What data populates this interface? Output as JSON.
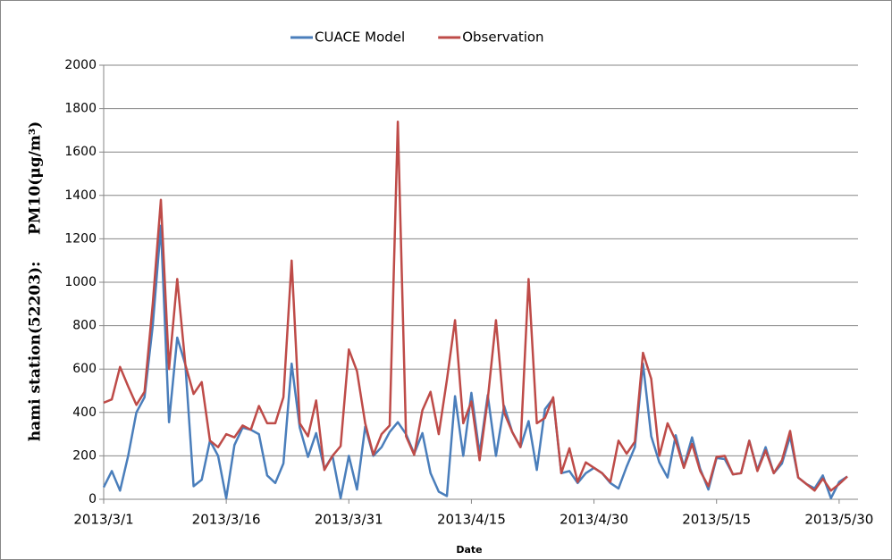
{
  "chart_data": {
    "type": "line",
    "y_label": "hami station(52203):     PM10(μg/m³)",
    "x_label": "Date",
    "categories": [
      "2013/3/1",
      null,
      null,
      null,
      null,
      null,
      null,
      null,
      null,
      null,
      null,
      null,
      null,
      null,
      null,
      "2013/3/16",
      null,
      null,
      null,
      null,
      null,
      null,
      null,
      null,
      null,
      null,
      null,
      null,
      null,
      null,
      "2013/3/31",
      null,
      null,
      null,
      null,
      null,
      null,
      null,
      null,
      null,
      null,
      null,
      null,
      null,
      null,
      "2013/4/15",
      null,
      null,
      null,
      null,
      null,
      null,
      null,
      null,
      null,
      null,
      null,
      null,
      null,
      null,
      "2013/4/30",
      null,
      null,
      null,
      null,
      null,
      null,
      null,
      null,
      null,
      null,
      null,
      null,
      null,
      null,
      "2013/5/15",
      null,
      null,
      null,
      null,
      null,
      null,
      null,
      null,
      null,
      null,
      null,
      null,
      null,
      null,
      "2013/5/30",
      null
    ],
    "series": [
      {
        "name": "CUACE Model",
        "color": "#4a7ebb",
        "values": [
          55,
          130,
          40,
          200,
          400,
          470,
          800,
          1260,
          355,
          745,
          620,
          60,
          90,
          270,
          200,
          5,
          250,
          330,
          320,
          300,
          110,
          75,
          165,
          625,
          330,
          195,
          305,
          140,
          200,
          5,
          200,
          45,
          335,
          200,
          240,
          310,
          355,
          300,
          210,
          305,
          120,
          35,
          15,
          475,
          200,
          490,
          210,
          480,
          200,
          430,
          310,
          240,
          360,
          135,
          415,
          465,
          120,
          130,
          75,
          120,
          145,
          120,
          75,
          50,
          150,
          240,
          625,
          290,
          170,
          100,
          295,
          150,
          285,
          140,
          45,
          190,
          185,
          115,
          120,
          270,
          135,
          240,
          120,
          165,
          290,
          100,
          70,
          50,
          110,
          5,
          80,
          105
        ]
      },
      {
        "name": "Observation",
        "color": "#be4b48",
        "values": [
          445,
          460,
          610,
          520,
          435,
          495,
          900,
          1380,
          600,
          1015,
          620,
          485,
          540,
          270,
          240,
          300,
          285,
          340,
          320,
          430,
          350,
          350,
          470,
          1100,
          350,
          290,
          455,
          135,
          200,
          245,
          690,
          590,
          350,
          205,
          300,
          340,
          1740,
          290,
          205,
          410,
          495,
          300,
          550,
          825,
          350,
          450,
          180,
          460,
          825,
          400,
          310,
          240,
          1015,
          350,
          375,
          470,
          120,
          235,
          80,
          170,
          145,
          120,
          80,
          270,
          210,
          265,
          675,
          555,
          200,
          350,
          270,
          145,
          255,
          130,
          60,
          195,
          200,
          115,
          120,
          270,
          130,
          225,
          120,
          180,
          315,
          100,
          70,
          40,
          95,
          40,
          70,
          105
        ]
      }
    ],
    "ylim": [
      0,
      2000
    ],
    "yticks": [
      0,
      200,
      400,
      600,
      800,
      1000,
      1200,
      1400,
      1600,
      1800,
      2000
    ],
    "grid": true,
    "legend": "top"
  }
}
